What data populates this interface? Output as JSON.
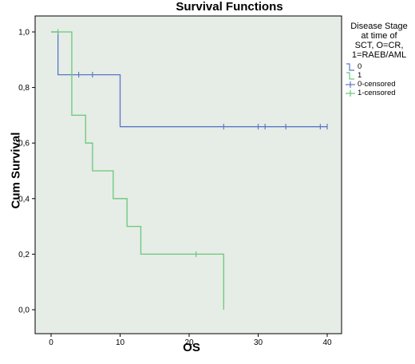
{
  "chart_data": {
    "type": "line",
    "step": true,
    "title": "Survival Functions",
    "xlabel": "OS",
    "ylabel": "Cum Survival",
    "xlim": [
      0,
      40
    ],
    "ylim": [
      0,
      1.0
    ],
    "x_ticks": [
      0,
      10,
      20,
      30,
      40
    ],
    "x_tick_labels": [
      "0",
      "10",
      "20",
      "30",
      "40"
    ],
    "y_ticks": [
      0.0,
      0.2,
      0.4,
      0.6,
      0.8,
      1.0
    ],
    "y_tick_labels": [
      "0,0",
      "0,2",
      "0,4",
      "0,6",
      "0,8",
      "1,0"
    ],
    "grid": false,
    "background": "#e6ece6",
    "legend": {
      "placement": "right",
      "title_lines": [
        "Disease Stage",
        "at time of",
        "SCT, O=CR,",
        "1=RAEB/AML"
      ],
      "entries": [
        {
          "label": "0",
          "kind": "line",
          "color": "#5a78c8"
        },
        {
          "label": "1",
          "kind": "line",
          "color": "#69c87a"
        },
        {
          "label": "0-censored",
          "kind": "cross",
          "color": "#5a78c8"
        },
        {
          "label": "1-censored",
          "kind": "cross",
          "color": "#69c87a"
        }
      ]
    },
    "series": [
      {
        "name": "0",
        "color": "#5a78c8",
        "steps": [
          [
            0,
            1.0
          ],
          [
            1,
            0.846
          ],
          [
            10,
            0.659
          ]
        ],
        "end_x": 40,
        "censored": [
          [
            4,
            0.846
          ],
          [
            6,
            0.846
          ],
          [
            25,
            0.659
          ],
          [
            30,
            0.659
          ],
          [
            31,
            0.659
          ],
          [
            34,
            0.659
          ],
          [
            39,
            0.659
          ],
          [
            40,
            0.659
          ]
        ]
      },
      {
        "name": "1",
        "color": "#69c87a",
        "steps": [
          [
            0,
            1.0
          ],
          [
            3,
            0.7
          ],
          [
            5,
            0.6
          ],
          [
            6,
            0.5
          ],
          [
            9,
            0.4
          ],
          [
            11,
            0.3
          ],
          [
            13,
            0.2
          ],
          [
            25,
            0.0
          ]
        ],
        "end_x": 25,
        "censored": [
          [
            1,
            1.0
          ],
          [
            21,
            0.2
          ]
        ]
      }
    ]
  }
}
